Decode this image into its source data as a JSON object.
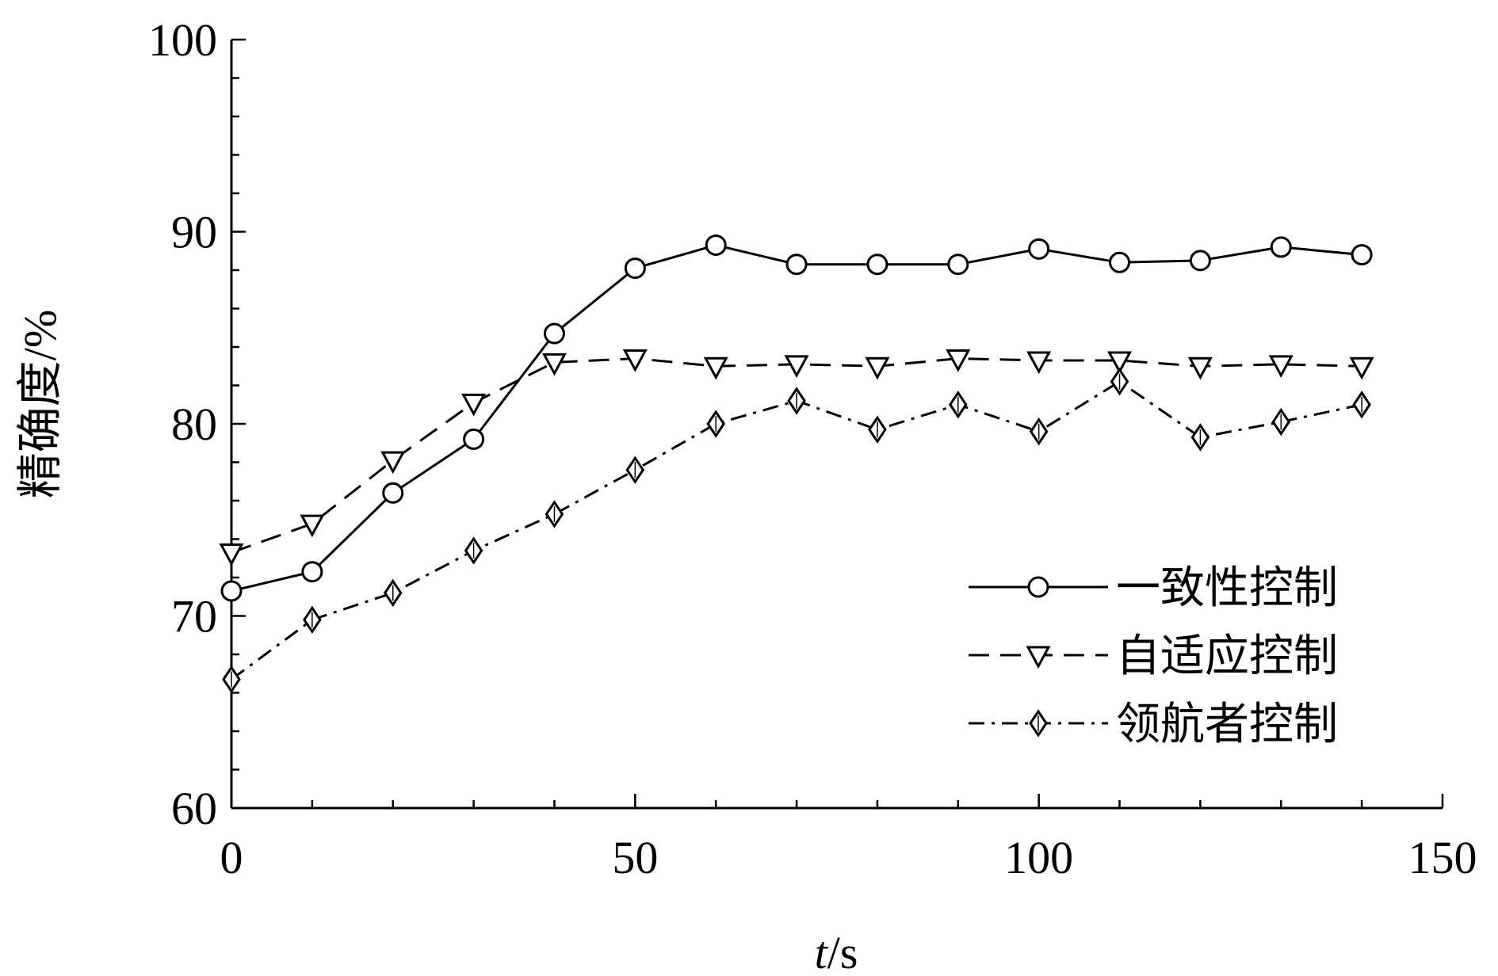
{
  "chart_data": {
    "type": "line",
    "xlabel": "t/s",
    "xlabel_italic_part": "t",
    "xlabel_rest": "/s",
    "ylabel": "精确度/%",
    "xlim": [
      0,
      150
    ],
    "ylim": [
      60,
      100
    ],
    "x_ticks": [
      0,
      50,
      100,
      150
    ],
    "y_ticks": [
      60,
      70,
      80,
      90,
      100
    ],
    "x_minor_step": 10,
    "y_minor_step": 2,
    "grid": false,
    "legend_position": "bottom-right",
    "x": [
      0,
      10,
      20,
      30,
      40,
      50,
      60,
      70,
      80,
      90,
      100,
      110,
      120,
      130,
      140
    ],
    "series": [
      {
        "name": "一致性控制",
        "line_style": "solid",
        "marker": "circle",
        "values": [
          71.3,
          72.3,
          76.4,
          79.2,
          84.7,
          88.1,
          89.3,
          88.3,
          88.3,
          88.3,
          89.1,
          88.4,
          88.5,
          89.2,
          88.8
        ]
      },
      {
        "name": "自适应控制",
        "line_style": "dashed",
        "marker": "triangle-down",
        "values": [
          73.3,
          74.8,
          78.1,
          81.1,
          83.2,
          83.4,
          83.0,
          83.1,
          83.0,
          83.4,
          83.3,
          83.3,
          83.0,
          83.1,
          83.0
        ]
      },
      {
        "name": "领航者控制",
        "line_style": "dashdot",
        "marker": "diamond",
        "values": [
          66.7,
          69.8,
          71.2,
          73.4,
          75.3,
          77.6,
          80.0,
          81.2,
          79.7,
          81.0,
          79.6,
          82.2,
          79.3,
          80.1,
          81.0
        ]
      }
    ],
    "colors": {
      "line": "#000000",
      "background": "#ffffff"
    }
  }
}
